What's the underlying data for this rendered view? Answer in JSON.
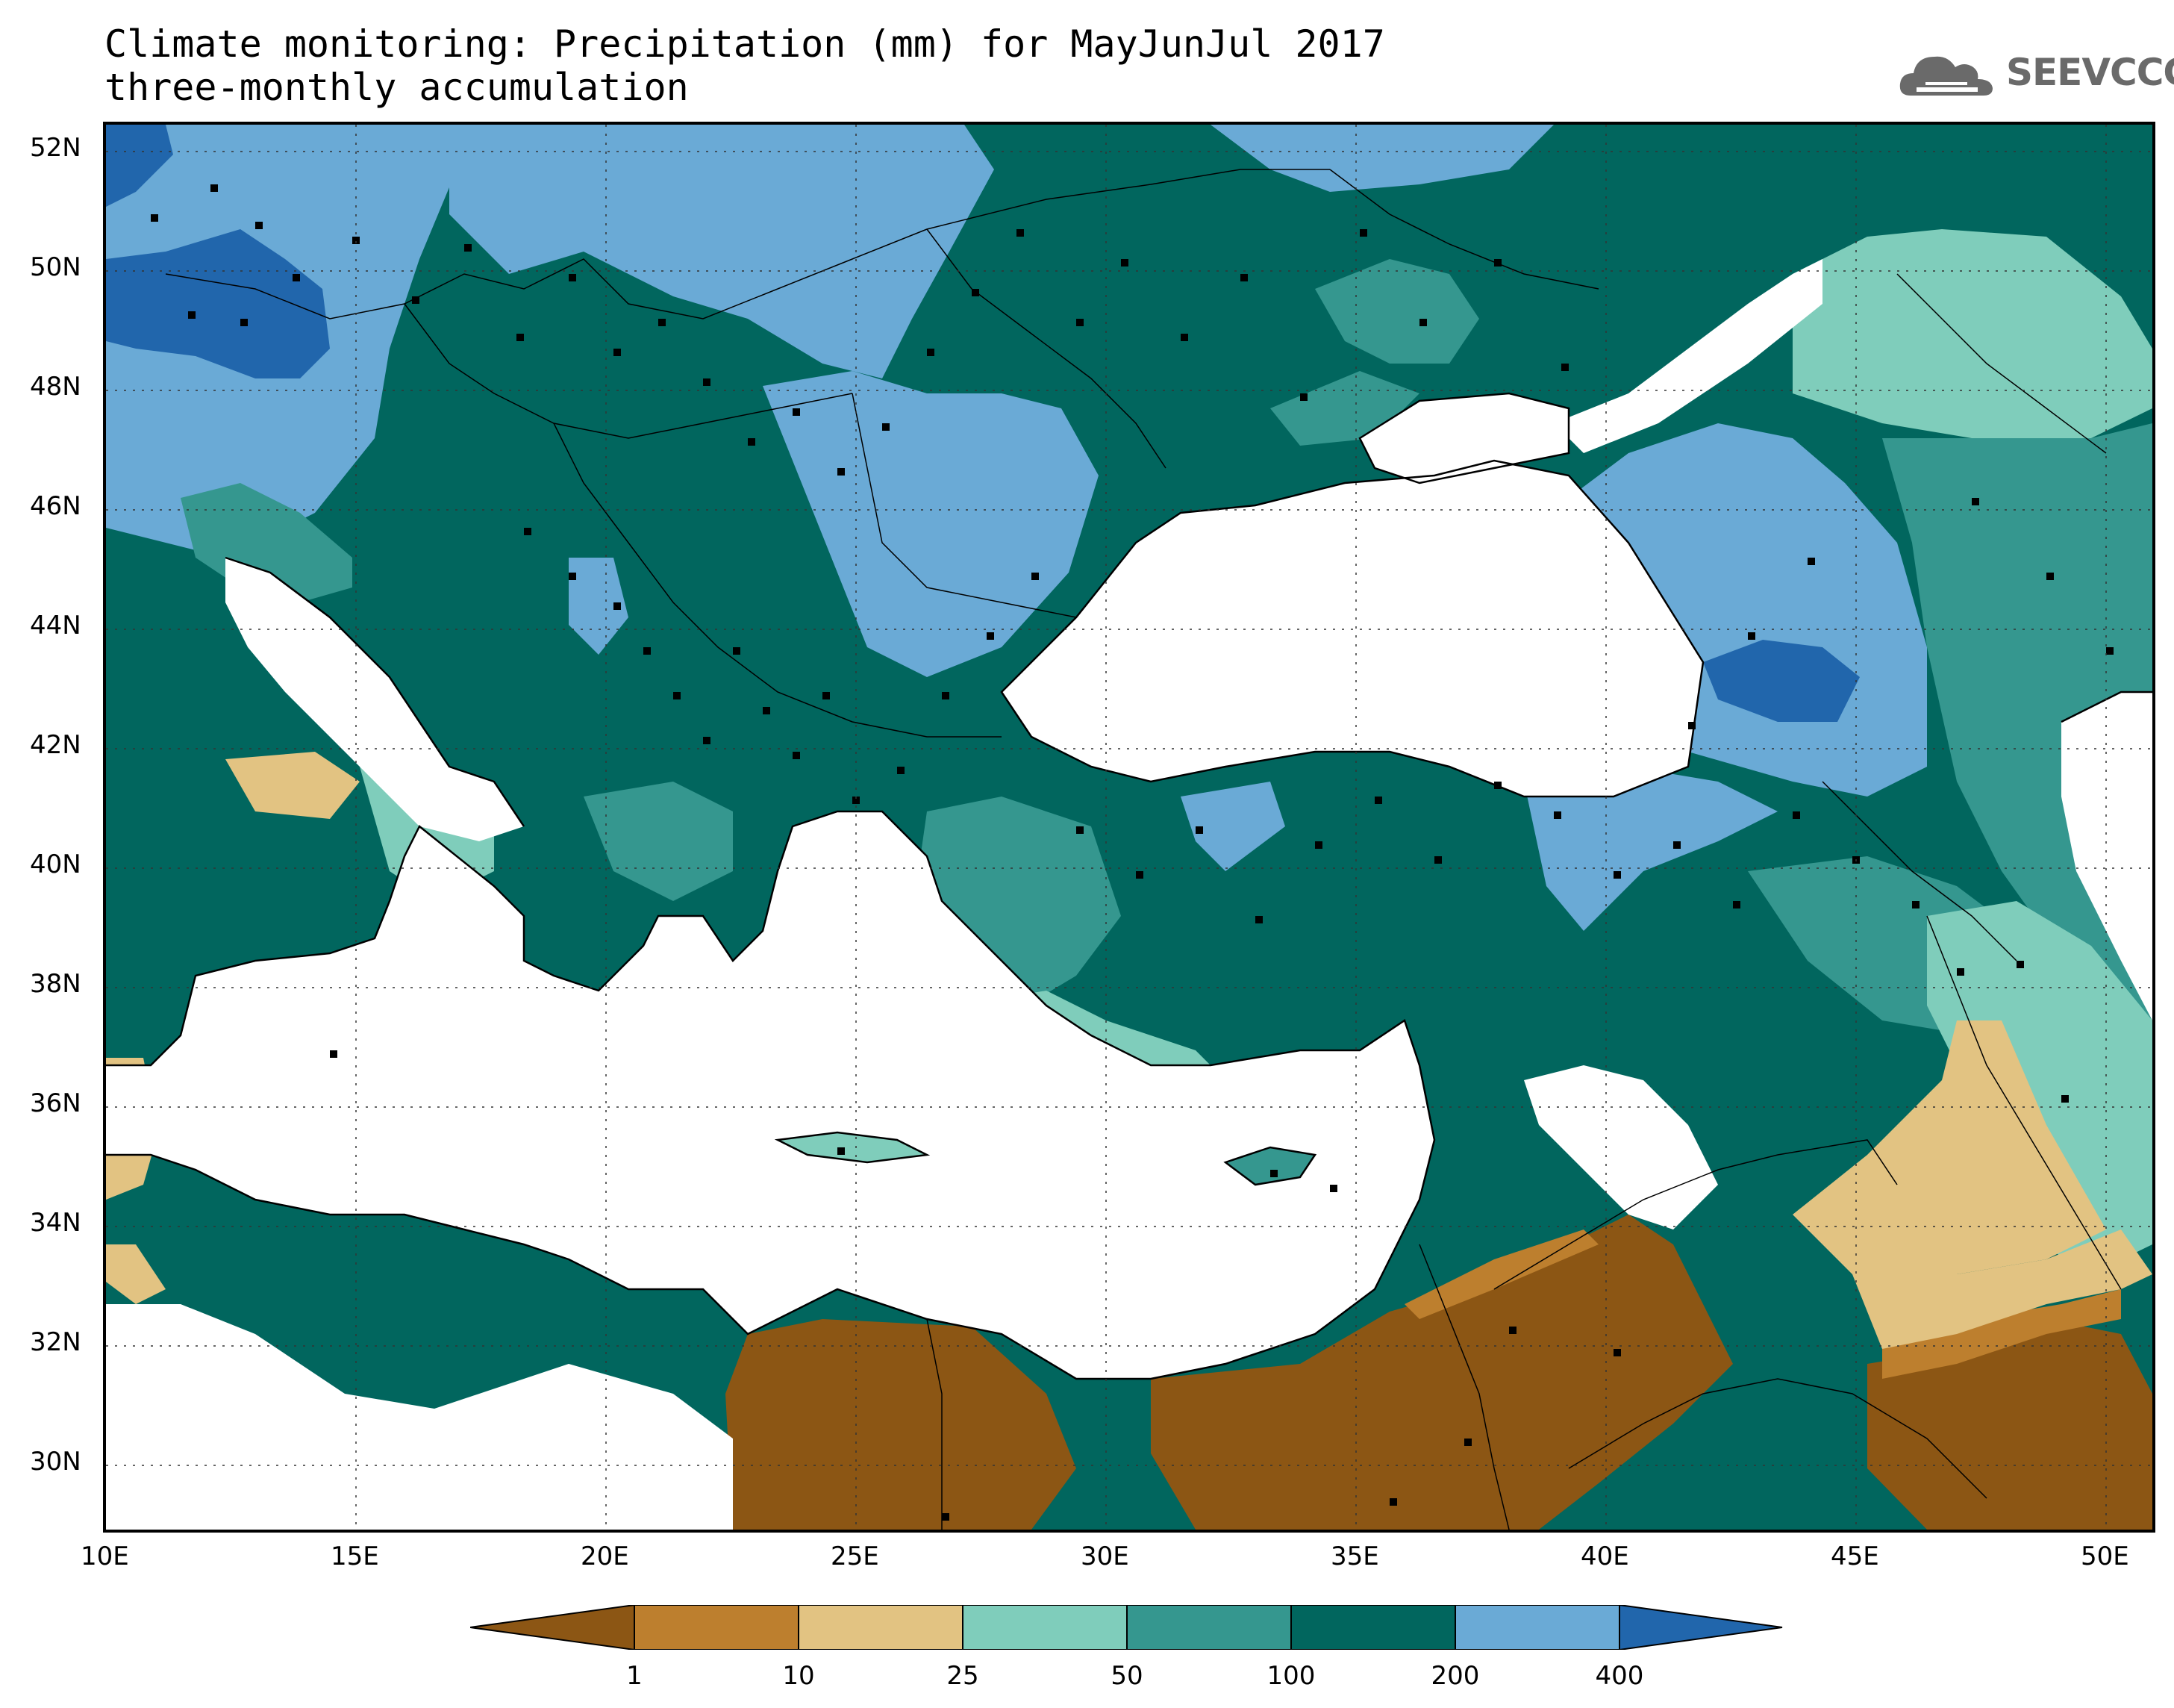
{
  "title": {
    "line1": "Climate monitoring: Precipitation (mm) for MayJunJul 2017",
    "line2": "three-monthly accumulation"
  },
  "logo": {
    "text": "SEEVCCC",
    "icon": "cloud-icon",
    "color": "#6a6a6a"
  },
  "map": {
    "lat_range": [
      29,
      52.5
    ],
    "lon_range": [
      10,
      51
    ],
    "y_ticks": [
      "52N",
      "50N",
      "48N",
      "46N",
      "44N",
      "42N",
      "40N",
      "38N",
      "36N",
      "34N",
      "32N",
      "30N"
    ],
    "x_ticks": [
      "10E",
      "15E",
      "20E",
      "25E",
      "30E",
      "35E",
      "40E",
      "45E",
      "50E"
    ],
    "grid": "dotted"
  },
  "legend": {
    "boundaries": [
      "1",
      "10",
      "25",
      "50",
      "100",
      "200",
      "400"
    ],
    "colors": [
      "#8c5614",
      "#bd7f2e",
      "#e2c382",
      "#7fcdbb",
      "#35978f",
      "#01665e",
      "#6aaad6",
      "#2166ac"
    ]
  }
}
